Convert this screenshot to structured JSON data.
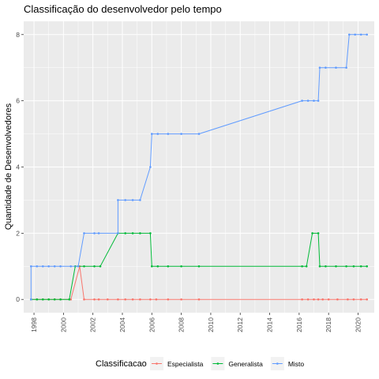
{
  "chart_data": {
    "type": "line",
    "title": "Classificação do desenvolvedor pelo tempo",
    "xlabel": "",
    "ylabel": "Quantidade de Desenvolvedores",
    "xlim": [
      1997.3,
      2021.1
    ],
    "ylim": [
      -0.4,
      8.4
    ],
    "x_ticks": [
      1998,
      2000,
      2002,
      2004,
      2006,
      2008,
      2010,
      2012,
      2014,
      2016,
      2018,
      2020
    ],
    "x_tick_labels": [
      "1998",
      "2000",
      "2002",
      "2004",
      "2006",
      "2008",
      "2010",
      "2012",
      "2014",
      "2016",
      "2018",
      "2020"
    ],
    "y_ticks": [
      0,
      2,
      4,
      6,
      8
    ],
    "y_tick_labels": [
      "0",
      "2",
      "4",
      "6",
      "8"
    ],
    "grid": true,
    "legend_title": "Classificacao",
    "legend_position": "bottom",
    "series": [
      {
        "name": "Especialista",
        "color": "#F8766D",
        "points": [
          [
            1997.8,
            0
          ],
          [
            1998.2,
            0
          ],
          [
            1998.6,
            0
          ],
          [
            1999.0,
            0
          ],
          [
            1999.4,
            0
          ],
          [
            1999.8,
            0
          ],
          [
            2000.5,
            0
          ],
          [
            2001.1,
            1
          ],
          [
            2001.4,
            0
          ],
          [
            2002.1,
            0
          ],
          [
            2002.4,
            0
          ],
          [
            2003.0,
            0
          ],
          [
            2003.7,
            0
          ],
          [
            2004.2,
            0
          ],
          [
            2004.7,
            0
          ],
          [
            2005.2,
            0
          ],
          [
            2005.9,
            0
          ],
          [
            2006.3,
            0
          ],
          [
            2007.1,
            0
          ],
          [
            2008.0,
            0
          ],
          [
            2009.2,
            0
          ],
          [
            2016.2,
            0
          ],
          [
            2016.6,
            0
          ],
          [
            2017.0,
            0
          ],
          [
            2017.3,
            0
          ],
          [
            2017.6,
            0
          ],
          [
            2018.0,
            0
          ],
          [
            2018.6,
            0
          ],
          [
            2019.3,
            0
          ],
          [
            2019.7,
            0
          ],
          [
            2020.2,
            0
          ],
          [
            2020.6,
            0
          ]
        ]
      },
      {
        "name": "Generalista",
        "color": "#00BA38",
        "points": [
          [
            1997.8,
            0
          ],
          [
            1998.2,
            0
          ],
          [
            1998.6,
            0
          ],
          [
            1999.0,
            0
          ],
          [
            1999.4,
            0
          ],
          [
            1999.8,
            0
          ],
          [
            2000.4,
            0
          ],
          [
            2000.8,
            1
          ],
          [
            2001.4,
            1
          ],
          [
            2002.1,
            1
          ],
          [
            2002.5,
            1
          ],
          [
            2003.7,
            2
          ],
          [
            2004.2,
            2
          ],
          [
            2004.7,
            2
          ],
          [
            2005.2,
            2
          ],
          [
            2005.9,
            2
          ],
          [
            2006.0,
            1
          ],
          [
            2006.4,
            1
          ],
          [
            2007.1,
            1
          ],
          [
            2008.0,
            1
          ],
          [
            2009.2,
            1
          ],
          [
            2016.2,
            1
          ],
          [
            2016.5,
            1
          ],
          [
            2016.9,
            2
          ],
          [
            2017.3,
            2
          ],
          [
            2017.4,
            1
          ],
          [
            2017.8,
            1
          ],
          [
            2018.5,
            1
          ],
          [
            2019.2,
            1
          ],
          [
            2019.7,
            1
          ],
          [
            2020.2,
            1
          ],
          [
            2020.6,
            1
          ]
        ]
      },
      {
        "name": "Misto",
        "color": "#619CFF",
        "points": [
          [
            1997.8,
            0
          ],
          [
            1997.8,
            1
          ],
          [
            1998.2,
            1
          ],
          [
            1998.6,
            1
          ],
          [
            1999.0,
            1
          ],
          [
            1999.4,
            1
          ],
          [
            1999.8,
            1
          ],
          [
            2000.5,
            1
          ],
          [
            2001.0,
            1
          ],
          [
            2001.4,
            2
          ],
          [
            2002.1,
            2
          ],
          [
            2002.4,
            2
          ],
          [
            2003.7,
            2
          ],
          [
            2003.7,
            3
          ],
          [
            2004.2,
            3
          ],
          [
            2004.7,
            3
          ],
          [
            2005.2,
            3
          ],
          [
            2005.9,
            4
          ],
          [
            2006.0,
            5
          ],
          [
            2006.4,
            5
          ],
          [
            2007.1,
            5
          ],
          [
            2008.0,
            5
          ],
          [
            2009.2,
            5
          ],
          [
            2016.2,
            6
          ],
          [
            2016.6,
            6
          ],
          [
            2017.0,
            6
          ],
          [
            2017.3,
            6
          ],
          [
            2017.4,
            7
          ],
          [
            2017.8,
            7
          ],
          [
            2018.5,
            7
          ],
          [
            2019.2,
            7
          ],
          [
            2019.4,
            8
          ],
          [
            2019.8,
            8
          ],
          [
            2020.2,
            8
          ],
          [
            2020.6,
            8
          ]
        ]
      }
    ]
  }
}
